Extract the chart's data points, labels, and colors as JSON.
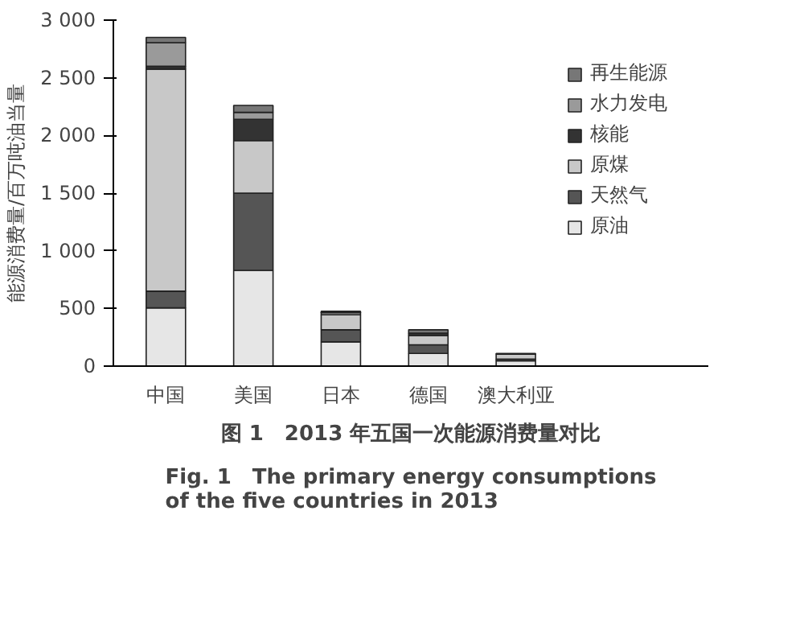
{
  "chart_data": {
    "type": "bar",
    "stacked": true,
    "title": "图 1　2013 年五国一次能源消费量对比",
    "subtitle": "Fig. 1　The primary energy consumptions of the five countries in 2013",
    "ylabel": "能源消费量/百万吨油当量",
    "categories": [
      "中国",
      "美国",
      "日本",
      "德国",
      "澳大利亚"
    ],
    "series": [
      {
        "name": "原油",
        "color": "#e6e6e6",
        "values": [
          505,
          830,
          210,
          110,
          45
        ]
      },
      {
        "name": "天然气",
        "color": "#555555",
        "values": [
          145,
          670,
          105,
          75,
          15
        ]
      },
      {
        "name": "原煤",
        "color": "#c8c8c8",
        "values": [
          1925,
          455,
          130,
          80,
          45
        ]
      },
      {
        "name": "核能",
        "color": "#333333",
        "values": [
          25,
          185,
          null,
          20,
          0
        ]
      },
      {
        "name": "水力发电",
        "color": "#9a9a9a",
        "values": [
          205,
          60,
          20,
          null,
          null
        ]
      },
      {
        "name": "再生能源",
        "color": "#777777",
        "values": [
          45,
          60,
          10,
          30,
          5
        ]
      }
    ],
    "ylim": [
      0,
      3000
    ],
    "yticks": [
      0,
      {
        "value": 500,
        "label": "500"
      },
      {
        "value": 1000,
        "label": "1 000"
      },
      {
        "value": 1500,
        "label": "1 500"
      },
      {
        "value": 2000,
        "label": "2 000"
      },
      {
        "value": 2500,
        "label": "2 500"
      },
      {
        "value": 3000,
        "label": "3 000"
      }
    ],
    "grid": false,
    "legend": "right"
  }
}
